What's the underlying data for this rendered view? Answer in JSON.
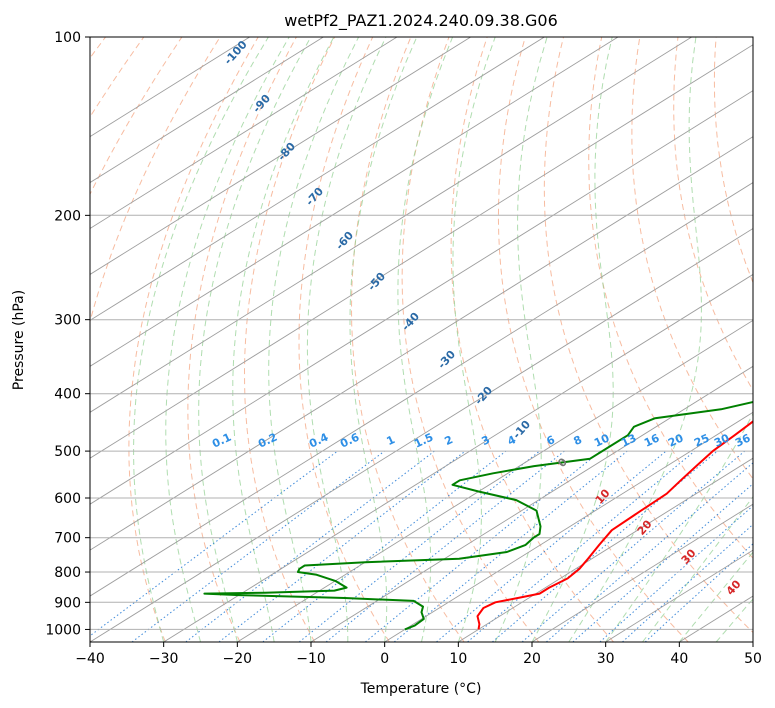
{
  "chart_data": {
    "type": "line",
    "title": "wetPf2_PAZ1.2024.240.09.38.G06",
    "xlabel": "Temperature (°C)",
    "ylabel": "Pressure (hPa)",
    "xlim": [
      -40,
      50
    ],
    "ylim": [
      1050,
      100
    ],
    "yscale": "log",
    "xticks": [
      "−40",
      "−30",
      "−20",
      "−10",
      "0",
      "10",
      "20",
      "30",
      "40",
      "50"
    ],
    "xtick_values": [
      -40,
      -30,
      -20,
      -10,
      0,
      10,
      20,
      30,
      40,
      50
    ],
    "yticks": [
      "100",
      "200",
      "300",
      "400",
      "500",
      "600",
      "700",
      "800",
      "900",
      "1000"
    ],
    "ytick_values": [
      100,
      200,
      300,
      400,
      500,
      600,
      700,
      800,
      900,
      1000
    ],
    "grid": true,
    "series": [
      {
        "color": "#ff0000",
        "points": [
          [
            10,
            1000
          ],
          [
            9,
            980
          ],
          [
            7,
            950
          ],
          [
            6,
            920
          ],
          [
            6.4,
            900
          ],
          [
            8.5,
            885
          ],
          [
            10.5,
            870
          ],
          [
            10.5,
            850
          ],
          [
            11,
            820
          ],
          [
            10.5,
            790
          ],
          [
            9.5,
            760
          ],
          [
            8,
            720
          ],
          [
            6.5,
            680
          ],
          [
            6.2,
            630
          ],
          [
            6,
            590
          ],
          [
            5,
            560
          ],
          [
            4,
            530
          ],
          [
            3,
            500
          ],
          [
            2.5,
            470
          ],
          [
            2,
            445
          ],
          [
            1,
            420
          ],
          [
            -0.5,
            400
          ],
          [
            -1.5,
            385
          ],
          [
            -2.5,
            365
          ],
          [
            -3.5,
            345
          ],
          [
            -4.5,
            320
          ],
          [
            -5.5,
            300
          ],
          [
            -6.5,
            280
          ],
          [
            -8,
            260
          ],
          [
            -9.5,
            240
          ],
          [
            -10.5,
            228
          ],
          [
            -10.5,
            222
          ],
          [
            -8.5,
            214
          ],
          [
            -3,
            205
          ],
          [
            2,
            197
          ],
          [
            6.5,
            185
          ],
          [
            9.5,
            175
          ],
          [
            12,
            163
          ],
          [
            15,
            150
          ],
          [
            17.5,
            138
          ],
          [
            20,
            126
          ],
          [
            22.5,
            115
          ],
          [
            25,
            106
          ],
          [
            25.5,
            100
          ]
        ]
      },
      {
        "color": "#008000",
        "points": [
          [
            0,
            1000
          ],
          [
            0.5,
            985
          ],
          [
            0.3,
            960
          ],
          [
            -1.5,
            935
          ],
          [
            -2.5,
            915
          ],
          [
            -5,
            895
          ],
          [
            -15,
            885
          ],
          [
            -30,
            875
          ],
          [
            -35,
            870
          ],
          [
            -27,
            867
          ],
          [
            -18,
            860
          ],
          [
            -17,
            850
          ],
          [
            -20,
            828
          ],
          [
            -24,
            808
          ],
          [
            -27,
            800
          ],
          [
            -27.5,
            790
          ],
          [
            -27.5,
            780
          ],
          [
            -20,
            770
          ],
          [
            -8,
            760
          ],
          [
            -3,
            740
          ],
          [
            -2,
            720
          ],
          [
            -2.5,
            700
          ],
          [
            -2.5,
            690
          ],
          [
            -4,
            670
          ],
          [
            -8,
            630
          ],
          [
            -13,
            605
          ],
          [
            -20,
            585
          ],
          [
            -25,
            570
          ],
          [
            -25,
            560
          ],
          [
            -22,
            545
          ],
          [
            -18,
            530
          ],
          [
            -12,
            515
          ],
          [
            -12,
            490
          ],
          [
            -12,
            470
          ],
          [
            -13,
            455
          ],
          [
            -12,
            440
          ],
          [
            -5,
            425
          ],
          [
            -1.5,
            410
          ],
          [
            -2,
            395
          ],
          [
            -3.5,
            370
          ],
          [
            -4,
            350
          ],
          [
            -5.5,
            338
          ],
          [
            -5.5,
            315
          ],
          [
            -6.5,
            300
          ],
          [
            -7.5,
            280
          ],
          [
            -8.5,
            260
          ],
          [
            -10,
            240
          ],
          [
            -10.5,
            228
          ],
          [
            -10,
            222
          ],
          [
            -13,
            212
          ],
          [
            -15,
            205
          ],
          [
            -15,
            195
          ],
          [
            -14,
            185
          ],
          [
            -14.5,
            175
          ],
          [
            -16,
            168
          ],
          [
            -15,
            162
          ],
          [
            -12,
            158
          ],
          [
            -9,
            153
          ],
          [
            -6.5,
            145
          ],
          [
            -5,
            135
          ],
          [
            -3.5,
            125
          ],
          [
            -2,
            115
          ],
          [
            -0.5,
            107
          ],
          [
            1,
            100
          ]
        ]
      }
    ],
    "dry_adiabat_labels": [
      "-100",
      "-90",
      "-80",
      "-70",
      "-60",
      "-50",
      "-40",
      "-30",
      "-20",
      "-10"
    ],
    "mixing_ratio_labels": [
      "0.1",
      "0.2",
      "0.4",
      "0.6",
      "1",
      "1.5",
      "2",
      "3",
      "4",
      "6",
      "8",
      "10",
      "13",
      "16",
      "20",
      "25",
      "30",
      "36"
    ],
    "moist_adiabat_labels": [
      "0",
      "10",
      "20",
      "30",
      "40"
    ]
  }
}
